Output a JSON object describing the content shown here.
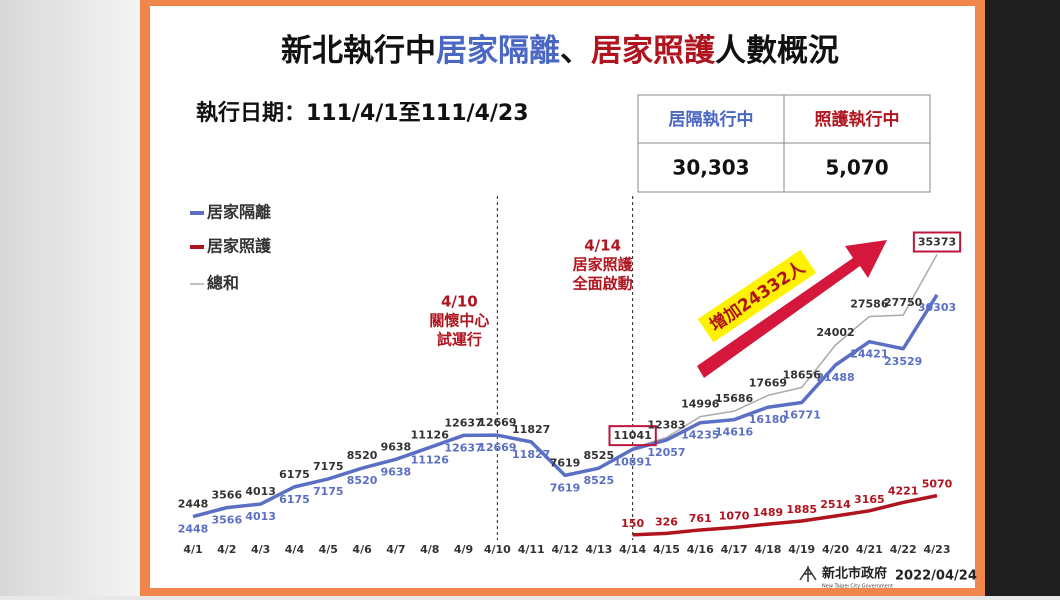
{
  "chart_data": {
    "type": "line",
    "title": {
      "parts": [
        "新北執行中",
        "居家隔離",
        "、",
        "居家照護",
        "人數概況"
      ]
    },
    "subtitle": "執行日期：111/4/1至111/4/23",
    "summary_table": {
      "headers": [
        "居隔執行中",
        "照護執行中"
      ],
      "values": [
        "30,303",
        "5,070"
      ]
    },
    "categories": [
      "4/1",
      "4/2",
      "4/3",
      "4/4",
      "4/5",
      "4/6",
      "4/7",
      "4/8",
      "4/9",
      "4/10",
      "4/11",
      "4/12",
      "4/13",
      "4/14",
      "4/15",
      "4/16",
      "4/17",
      "4/18",
      "4/19",
      "4/20",
      "4/21",
      "4/22",
      "4/23"
    ],
    "series": [
      {
        "name": "居家隔離",
        "color": "#5b6fc4",
        "values": [
          2448,
          3566,
          4013,
          6175,
          7175,
          8520,
          9638,
          11126,
          12637,
          12669,
          11827,
          7619,
          8525,
          10891,
          12057,
          14235,
          14616,
          16180,
          16771,
          21488,
          24421,
          23529,
          30303
        ]
      },
      {
        "name": "居家照護",
        "color": "#b0141e",
        "values": [
          null,
          null,
          null,
          null,
          null,
          null,
          null,
          null,
          null,
          null,
          null,
          null,
          null,
          150,
          326,
          761,
          1070,
          1489,
          1885,
          2514,
          3165,
          4221,
          5070
        ]
      },
      {
        "name": "總和",
        "color": "#aaaaaa",
        "values": [
          2448,
          3566,
          4013,
          6175,
          7175,
          8520,
          9638,
          11126,
          12637,
          12669,
          11827,
          7619,
          8525,
          11041,
          12383,
          14996,
          15686,
          17669,
          18656,
          24002,
          27586,
          27750,
          35373
        ]
      }
    ],
    "annotations": [
      {
        "lines": [
          "4/10",
          "關懷中心",
          "試運行"
        ]
      },
      {
        "lines": [
          "4/14",
          "居家照護",
          "全面啟動"
        ]
      }
    ],
    "arrow_label": "增加24332人",
    "footer": {
      "org": "新北市政府",
      "org_en": "New Taipei City Government",
      "date": "2022/04/24"
    }
  }
}
